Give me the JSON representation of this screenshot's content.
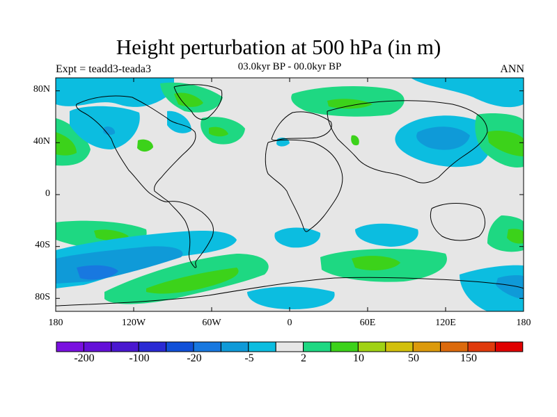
{
  "title": "Height perturbation at 500 hPa (in m)",
  "expt": "Expt = teadd3-teada3",
  "period": "03.0kyr BP - 00.0kyr BP",
  "season": "ANN",
  "lat_labels": [
    "80N",
    "40N",
    "0",
    "40S",
    "80S"
  ],
  "lon_labels": [
    "180",
    "120W",
    "60W",
    "0",
    "60E",
    "120E",
    "180"
  ],
  "colorbar": {
    "colors": [
      "#7a10e0",
      "#6410d8",
      "#4a18d0",
      "#2a2ad4",
      "#1050d8",
      "#1878e0",
      "#0f9ad8",
      "#0cbde0",
      "#e6e6e6",
      "#1ed882",
      "#3cd21a",
      "#a0d214",
      "#d2c00c",
      "#dc9a0c",
      "#dc6a0c",
      "#e03a0c",
      "#e00000"
    ],
    "labels": [
      "-200",
      "-100",
      "-20",
      "-5",
      "2",
      "10",
      "50",
      "150"
    ]
  },
  "palette": {
    "ocean_bg": "#e6e6e6",
    "light_blue": "#0cbde0",
    "blue": "#0f9ad8",
    "mid_blue": "#1878e0",
    "dark_blue": "#1050d8",
    "teal": "#1ed882",
    "green": "#3cd21a"
  }
}
